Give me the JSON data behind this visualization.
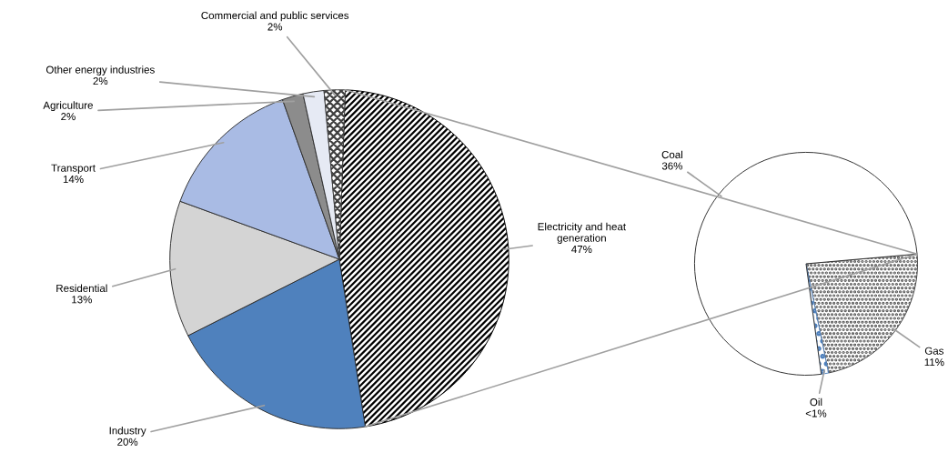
{
  "chart_data": [
    {
      "type": "pie",
      "categories": [
        "Electricity and heat generation",
        "Industry",
        "Residential",
        "Transport",
        "Agriculture",
        "Other energy industries",
        "Commercial and public services"
      ],
      "values": [
        47,
        20,
        13,
        14,
        2,
        2,
        2
      ],
      "value_labels": [
        "47%",
        "20%",
        "13%",
        "14%",
        "2%",
        "2%",
        "2%"
      ],
      "colors": [
        "#000000",
        "#4f81bd",
        "#d4d4d4",
        "#a9bbe4",
        "#8c8c8c",
        "#e6eaf4",
        "#404040"
      ]
    },
    {
      "type": "pie",
      "categories": [
        "Gas",
        "Oil",
        "Coal"
      ],
      "values": [
        11,
        0.5,
        36
      ],
      "value_labels": [
        "11%",
        "<1%",
        "36%"
      ],
      "colors": [
        "#404040",
        "#4f81bd",
        "#ffffff"
      ]
    }
  ]
}
